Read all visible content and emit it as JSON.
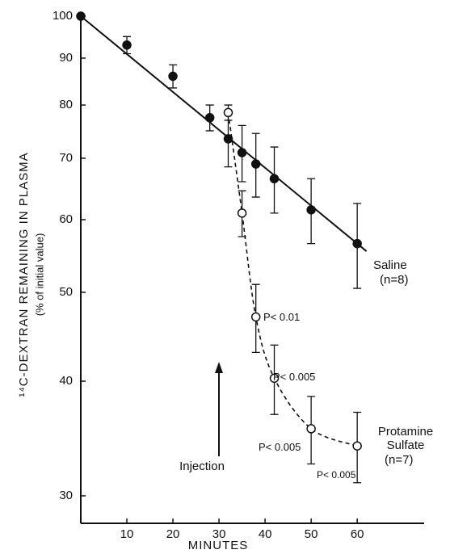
{
  "chart_data": {
    "type": "scatter",
    "y_label": "¹⁴C-DEXTRAN REMAINING IN PLASMA",
    "y_sublabel": "(% of initial value)",
    "x_label": "MINUTES",
    "log_y": true,
    "xlim": [
      0,
      74
    ],
    "ylim": [
      28,
      100
    ],
    "xticks": [
      10,
      20,
      30,
      40,
      50,
      60
    ],
    "yticks": [
      30,
      40,
      50,
      60,
      70,
      80,
      90,
      100
    ],
    "series": [
      {
        "name": "Saline",
        "n_label": "(n=8)",
        "color": "#111111",
        "marker": "filled",
        "line": "solid",
        "x": [
          0,
          10,
          20,
          28,
          32,
          35,
          38,
          42,
          50,
          60
        ],
        "values": [
          100,
          93,
          86,
          77.5,
          73.5,
          71,
          69,
          66.5,
          61.5,
          56.5
        ],
        "errors": [
          0,
          2,
          2.5,
          2.5,
          5,
          5,
          5.5,
          5.5,
          5,
          6
        ]
      },
      {
        "name": "Protamine Sulfate",
        "n_label": "(n=7)",
        "color": "#111111",
        "marker": "open",
        "line": "dashed",
        "x": [
          32,
          35,
          38,
          42,
          50,
          60
        ],
        "values": [
          78.5,
          61,
          47,
          40.3,
          35.5,
          34
        ],
        "errors": [
          1.5,
          3.5,
          4,
          3.5,
          3,
          3
        ]
      }
    ],
    "annotations": [
      "P< 0.01",
      "P< 0.005",
      "P< 0.005",
      "P< 0.005"
    ],
    "injection_label": "Injection"
  }
}
